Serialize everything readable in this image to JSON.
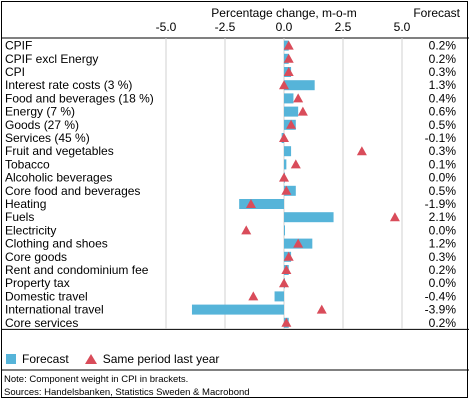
{
  "chart_data": {
    "type": "bar",
    "title": "",
    "xlabel": "Percentage change, m-o-m",
    "value_column_label": "Forecast",
    "xlim": [
      -7.5,
      7.5
    ],
    "xticks": [
      "-5.0",
      "-2.5",
      "0.0",
      "2.5",
      "5.0"
    ],
    "xtick_values": [
      -5.0,
      -2.5,
      0.0,
      2.5,
      5.0
    ],
    "grid": true,
    "legend_position": "bottom",
    "categories": [
      "CPIF",
      "CPIF excl Energy",
      "CPI",
      "Interest rate costs (3 %)",
      "Food and beverages (18 %)",
      "Energy (7 %)",
      "Goods (27 %)",
      "Services (45 %)",
      "Fruit and vegetables",
      "Tobacco",
      "Alcoholic beverages",
      "Core food and beverages",
      "Heating",
      "Fuels",
      "Electricity",
      "Clothing and shoes",
      "Core goods",
      "Rent and condominium fee",
      "Property tax",
      "Domestic travel",
      "International travel",
      "Core services"
    ],
    "series": [
      {
        "name": "Forecast",
        "type": "bar",
        "color": "#56b4d9",
        "values": [
          0.2,
          0.2,
          0.3,
          1.3,
          0.4,
          0.6,
          0.5,
          -0.1,
          0.3,
          0.1,
          0.0,
          0.5,
          -1.9,
          2.1,
          0.0,
          1.2,
          0.3,
          0.2,
          0.0,
          -0.4,
          -3.9,
          0.2
        ]
      },
      {
        "name": "Same period last year",
        "type": "marker",
        "marker": "triangle",
        "color": "#d94c5a",
        "values": [
          0.2,
          0.2,
          0.2,
          0.0,
          0.6,
          0.8,
          0.3,
          0.0,
          3.3,
          0.5,
          0.0,
          0.1,
          -1.4,
          4.7,
          -1.6,
          0.6,
          0.2,
          0.1,
          0.0,
          -1.3,
          1.6,
          0.1
        ]
      }
    ],
    "forecast_labels": [
      "0.2%",
      "0.2%",
      "0.3%",
      "1.3%",
      "0.4%",
      "0.6%",
      "0.5%",
      "-0.1%",
      "0.3%",
      "0.1%",
      "0.0%",
      "0.5%",
      "-1.9%",
      "2.1%",
      "0.0%",
      "1.2%",
      "0.3%",
      "0.2%",
      "0.0%",
      "-0.4%",
      "-3.9%",
      "0.2%"
    ]
  },
  "legend": {
    "forecast_label": "Forecast",
    "last_year_label": "Same period last year"
  },
  "notes": {
    "note": "Note: Component weight in CPI in brackets.",
    "sources": "Sources: Handelsbanken, Statistics Sweden & Macrobond"
  }
}
